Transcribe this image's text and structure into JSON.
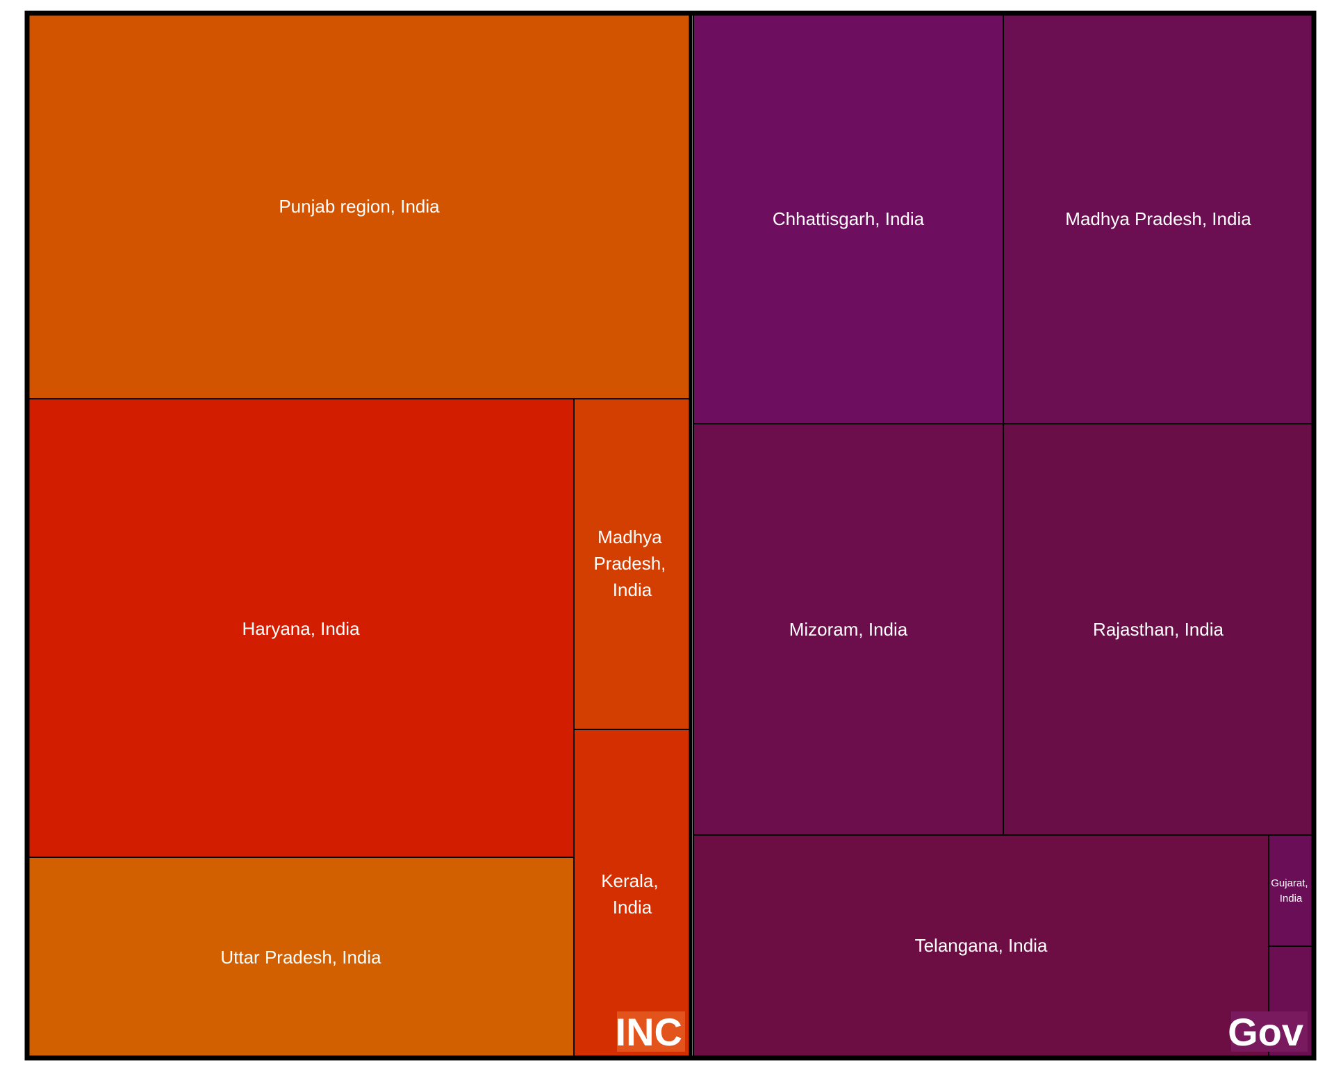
{
  "chart_data": {
    "type": "treemap",
    "groups": [
      {
        "name": "INC",
        "color": "#E2541C",
        "items": [
          {
            "label": "Punjab region, India",
            "value": 348,
            "color": "#D35400"
          },
          {
            "label": "Haryana, India",
            "value": 342,
            "color": "#D31D00"
          },
          {
            "label": "Uttar Pradesh, India",
            "value": 150,
            "color": "#D36000"
          },
          {
            "label": "Madhya Pradesh, India",
            "value": 53,
            "color": "#D33F00"
          },
          {
            "label": "Kerala, India",
            "value": 52,
            "color": "#D32F00"
          }
        ]
      },
      {
        "name": "Gov",
        "color": "#7A1A5E",
        "items": [
          {
            "label": "Chhattisgarh, India",
            "value": 173,
            "color": "#6E0E5E"
          },
          {
            "label": "Madhya Pradesh, India",
            "value": 173,
            "color": "#6B0E52"
          },
          {
            "label": "Mizoram, India",
            "value": 173,
            "color": "#6C0E4B"
          },
          {
            "label": "Rajasthan, India",
            "value": 173,
            "color": "#6A0E48"
          },
          {
            "label": "Telangana, India",
            "value": 170,
            "color": "#6C0E44"
          },
          {
            "label": "Gujarat, India",
            "value": 8,
            "color": "#6B0E58"
          },
          {
            "label": "",
            "value": 8,
            "color": "#6B0E52"
          }
        ]
      }
    ]
  }
}
